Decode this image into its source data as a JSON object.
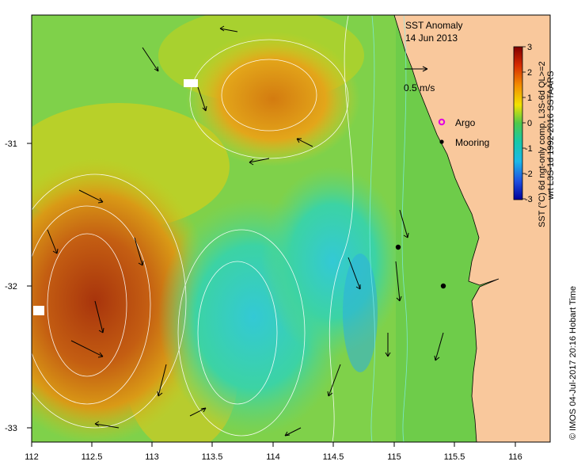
{
  "map": {
    "title": "SST Anomaly",
    "date": "14 Jun 2013",
    "scale_label": "0.5 m/s",
    "legend": {
      "argo_label": "Argo",
      "mooring_label": "Mooring"
    },
    "colorbar": {
      "ticks": [
        "3",
        "2",
        "1",
        "0",
        "-1",
        "-2",
        "-3"
      ],
      "label_line1": "SST (°C) 6d ngt-only comp, L3S-6d QL>=2",
      "label_line2": "wrt L3S-1d 1992-2016 SSTAARS"
    },
    "x_ticks": [
      "112",
      "112.5",
      "113",
      "113.5",
      "114",
      "114.5",
      "115",
      "115.5",
      "116"
    ],
    "y_ticks": [
      "-31",
      "-32",
      "-33"
    ],
    "credit": "© IMOS 04-Jul-2017 20:16 Hobart Time",
    "colors": {
      "land": "#F9C89C",
      "warm": "#C85A10",
      "cool": "#2FC7B5",
      "neutral": "#7FD14A"
    }
  }
}
